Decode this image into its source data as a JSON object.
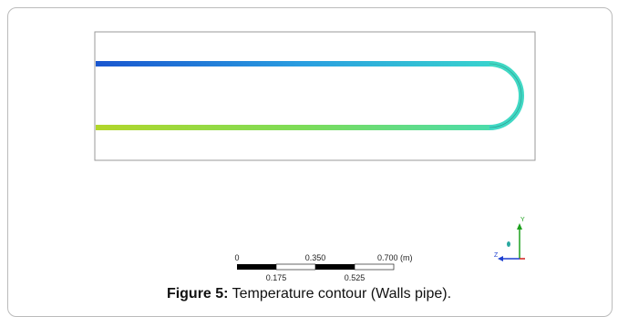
{
  "figure": {
    "scale_bar": {
      "top_labels": [
        "0",
        "0.350",
        "0.700 (m)"
      ],
      "bottom_labels": [
        "0.175",
        "0.525"
      ]
    },
    "axes": {
      "y_label": "Y",
      "z_label": "Z"
    },
    "caption": {
      "label": "Figure 5:",
      "text": "Temperature contour (Walls pipe)."
    }
  }
}
